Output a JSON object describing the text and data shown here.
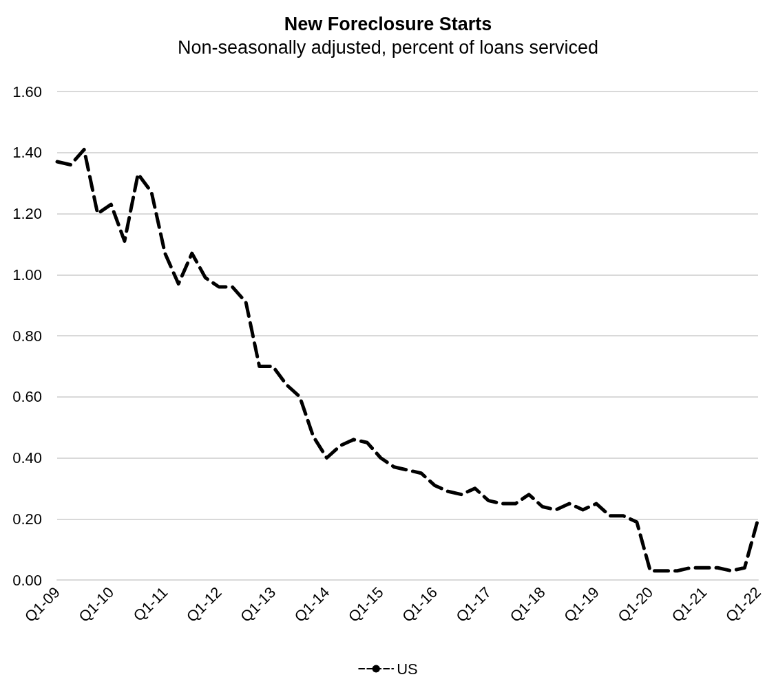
{
  "chart_data": {
    "type": "line",
    "title": "New Foreclosure Starts",
    "subtitle": "Non-seasonally adjusted, percent of loans serviced",
    "categories": [
      "Q1-09",
      null,
      null,
      null,
      "Q1-10",
      null,
      null,
      null,
      "Q1-11",
      null,
      null,
      null,
      "Q1-12",
      null,
      null,
      null,
      "Q1-13",
      null,
      null,
      null,
      "Q1-14",
      null,
      null,
      null,
      "Q1-15",
      null,
      null,
      null,
      "Q1-16",
      null,
      null,
      null,
      "Q1-17",
      null,
      null,
      null,
      "Q1-18",
      null,
      null,
      null,
      "Q1-19",
      null,
      null,
      null,
      "Q1-20",
      null,
      null,
      null,
      "Q1-21",
      null,
      null,
      null,
      "Q1-22"
    ],
    "series": [
      {
        "name": "US",
        "color": "#000000",
        "values": [
          1.37,
          1.36,
          1.41,
          1.2,
          1.23,
          1.11,
          1.33,
          1.27,
          1.07,
          0.97,
          1.07,
          0.99,
          0.96,
          0.96,
          0.91,
          0.7,
          0.7,
          0.64,
          0.6,
          0.47,
          0.4,
          0.44,
          0.46,
          0.45,
          0.4,
          0.37,
          0.36,
          0.35,
          0.31,
          0.29,
          0.28,
          0.3,
          0.26,
          0.25,
          0.25,
          0.28,
          0.24,
          0.23,
          0.25,
          0.23,
          0.25,
          0.21,
          0.21,
          0.19,
          0.03,
          0.03,
          0.03,
          0.04,
          0.04,
          0.04,
          0.03,
          0.04,
          0.2
        ]
      }
    ],
    "ylim": [
      0,
      1.6
    ],
    "yticks": [
      {
        "value": 0,
        "label": "0.00"
      },
      {
        "value": 0.2,
        "label": "0.20"
      },
      {
        "value": 0.4,
        "label": "0.40"
      },
      {
        "value": 0.6,
        "label": "0.60"
      },
      {
        "value": 0.8,
        "label": "0.80"
      },
      {
        "value": 1.0,
        "label": "1.00"
      },
      {
        "value": 1.2,
        "label": "1.20"
      },
      {
        "value": 1.4,
        "label": "1.40"
      },
      {
        "value": 1.6,
        "label": "1.60"
      }
    ],
    "grid": "y",
    "legend": "bottom",
    "marker": "none",
    "line_style": "dashed"
  }
}
